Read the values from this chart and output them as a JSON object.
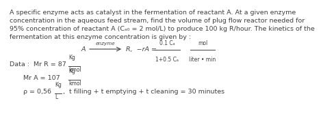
{
  "bg_color": "#ffffff",
  "text_color": "#404040",
  "line1": "A specific enzyme acts as catalyst in the fermentation of reactant A. At a given enzyme",
  "line2": "concentration in the aqueous feed stream, find the volume of plug flow reactor needed for",
  "line3": "95% concentration of reactant A (Cₐ₀ = 2 mol/L) to produce 100 kg R/hour. The kinetics of the",
  "line4": "fermentation at this enzyme concentration is given by :",
  "fontsize_body": 6.8,
  "fontsize_reaction": 6.8,
  "fontsize_small": 5.5,
  "fontsize_data": 6.8
}
